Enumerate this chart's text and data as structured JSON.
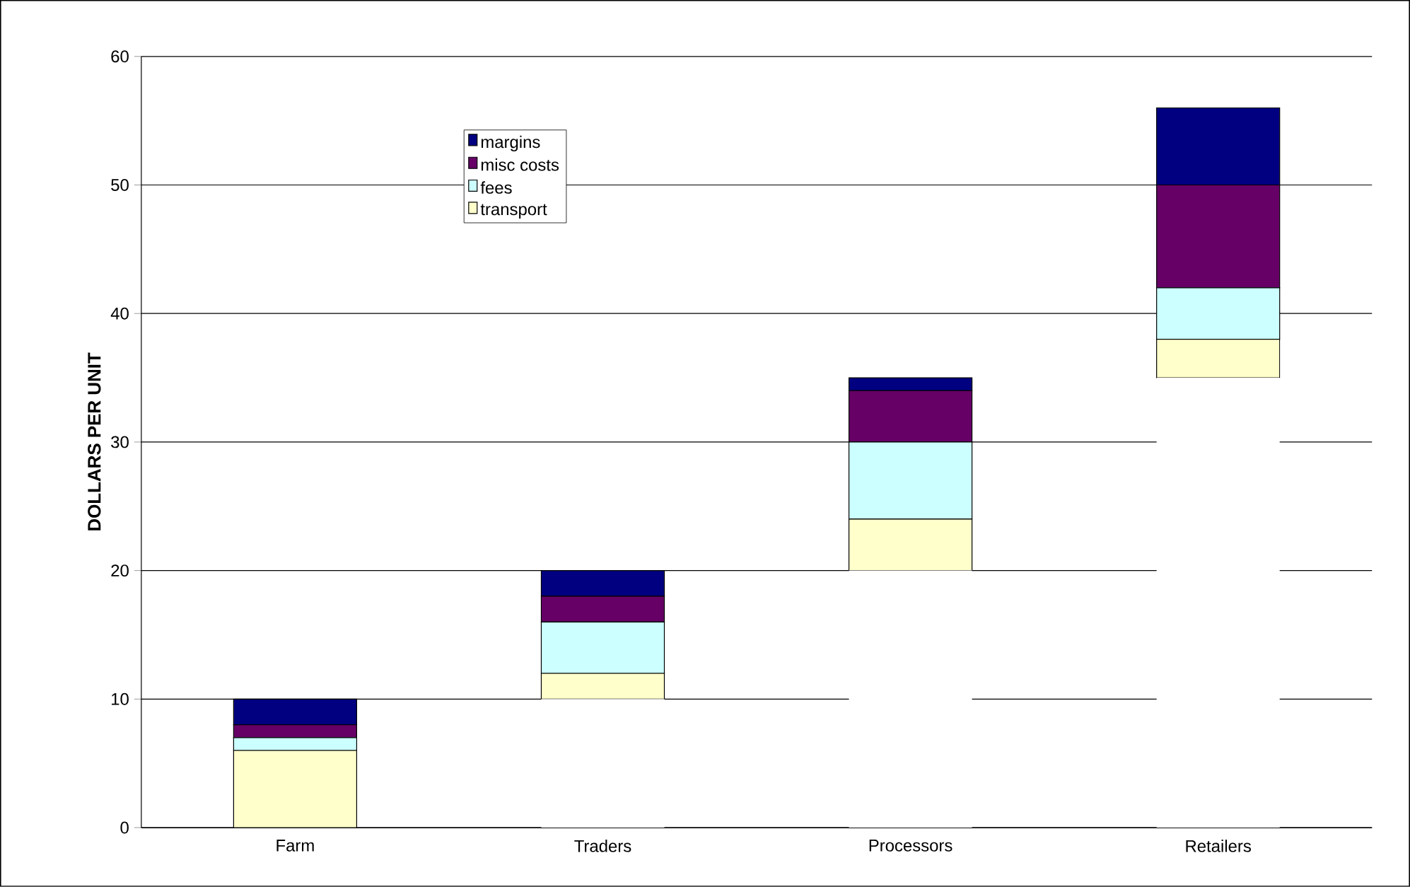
{
  "chart_data": {
    "type": "bar",
    "stacked": true,
    "ylabel": "DOLLARS PER UNIT",
    "categories": [
      "Farm",
      "Traders",
      "Processors",
      "Retailers"
    ],
    "series": [
      {
        "color": "#ffffff",
        "values": [
          0,
          10,
          20,
          35
        ]
      },
      {
        "name": "transport",
        "color": "#ffffcc",
        "values": [
          6,
          2,
          4,
          3
        ]
      },
      {
        "name": "fees",
        "color": "#ccffff",
        "values": [
          1,
          4,
          6,
          4
        ]
      },
      {
        "name": "misc costs",
        "color": "#660066",
        "values": [
          1,
          2,
          4,
          8
        ]
      },
      {
        "name": "margins",
        "color": "#000080",
        "values": [
          2,
          2,
          1,
          6
        ]
      }
    ],
    "ylim": [
      0,
      60
    ],
    "yticks": [
      0,
      10,
      20,
      30,
      40,
      50,
      60
    ],
    "grid": "y",
    "legend": "top left"
  }
}
